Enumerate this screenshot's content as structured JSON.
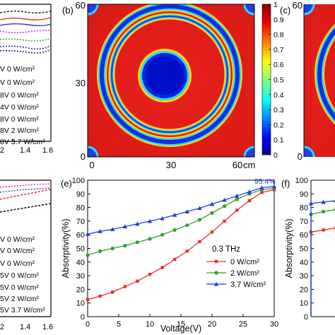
{
  "panels": {
    "b": {
      "label": "(b)"
    },
    "c": {
      "label": "(c)"
    },
    "e": {
      "label": "(e)"
    },
    "f": {
      "label": "(f)"
    }
  },
  "left_top_legend": [
    "V 0 W/cm²",
    "V 0 W/cm²",
    "8V 0 W/cm²",
    "4V 0 W/cm²",
    "8V 0 W/cm²",
    "8V 2 W/cm²",
    "8V 3.7 W/cm²"
  ],
  "left_bottom_legend": [
    "V 0 W/cm²",
    "V 0 W/cm²",
    "V 0 W/cm²",
    "5V 0 W/cm²",
    "5V 0 W/cm²",
    "5V 2 W/cm²",
    "5V 3.7 W/cm²"
  ],
  "left_top_xticks": [
    "2",
    "1.4",
    "1.6"
  ],
  "left_bottom_xticks": [
    "2",
    "1.4",
    "1.6"
  ],
  "map_b": {
    "yticks": [
      "60",
      "30",
      "0"
    ],
    "xticks": [
      "0",
      "30",
      "60"
    ],
    "unit": "cm"
  },
  "colorbar": {
    "ticks": [
      "1",
      "0.9",
      "0.8",
      "0.7",
      "0.6",
      "0.5",
      "0.4",
      "0.3",
      "0.2",
      "0.1",
      "0"
    ],
    "colors": [
      "#00008f",
      "#0000ff",
      "#00ffff",
      "#ffff00",
      "#ff0000",
      "#800000"
    ]
  },
  "map_c": {
    "ytick_top": "60",
    "ytick_bottom": "0"
  },
  "colors": {
    "red": "#e8302b",
    "green": "#2ea02e",
    "blue": "#1f3fd9"
  },
  "chart_data": [
    {
      "type": "line",
      "panel": "(e)",
      "xlabel": "Voltage(V)",
      "ylabel": "Absorptivity(%)",
      "xlim": [
        0,
        30
      ],
      "ylim": [
        0,
        100
      ],
      "xticks": [
        "0",
        "5",
        "10",
        "15",
        "20",
        "25",
        "30"
      ],
      "yticks": [
        "0",
        "10",
        "20",
        "30",
        "40",
        "50",
        "60",
        "70",
        "80",
        "90",
        "100"
      ],
      "legend_title": "0.3 THz",
      "legend_position": "center-right",
      "annotation": "95.4%",
      "x": [
        0,
        2,
        4,
        6,
        8,
        10,
        12,
        14,
        16,
        18,
        20,
        22,
        24,
        26,
        28,
        30
      ],
      "series": [
        {
          "name": "0 W/cm²",
          "color": "#e8302b",
          "marker": "square",
          "values": [
            12.5,
            15,
            18,
            22,
            26,
            31,
            36,
            42,
            48,
            55,
            62,
            70,
            78,
            85,
            91,
            93
          ]
        },
        {
          "name": "2 W/cm²",
          "color": "#2ea02e",
          "marker": "circle",
          "values": [
            45,
            48,
            50,
            52,
            54.5,
            57,
            60,
            63.5,
            67,
            71,
            76,
            81,
            86,
            90,
            93,
            94
          ]
        },
        {
          "name": "3.7 W/cm²",
          "color": "#1f3fd9",
          "marker": "triangle",
          "values": [
            60.5,
            62.5,
            64,
            66,
            68,
            70,
            72,
            74.5,
            77,
            79.5,
            82.5,
            85.5,
            88.5,
            91.5,
            94.5,
            95.4
          ]
        }
      ]
    },
    {
      "type": "line",
      "panel": "(f)",
      "xlabel": "",
      "ylabel": "Absorptivity(%)",
      "xlim": [
        0,
        30
      ],
      "ylim": [
        0,
        100
      ],
      "yticks": [
        "0",
        "10",
        "20",
        "30",
        "40",
        "50",
        "60",
        "70",
        "80",
        "90",
        "100"
      ],
      "x": [
        0,
        2,
        4
      ],
      "series": [
        {
          "name": "",
          "color": "#e8302b",
          "marker": "square",
          "values": [
            62,
            63.5,
            65
          ]
        },
        {
          "name": "",
          "color": "#2ea02e",
          "marker": "circle",
          "values": [
            75,
            77,
            78.5
          ]
        },
        {
          "name": "",
          "color": "#1f3fd9",
          "marker": "triangle",
          "values": [
            83,
            84,
            85
          ]
        }
      ]
    }
  ]
}
